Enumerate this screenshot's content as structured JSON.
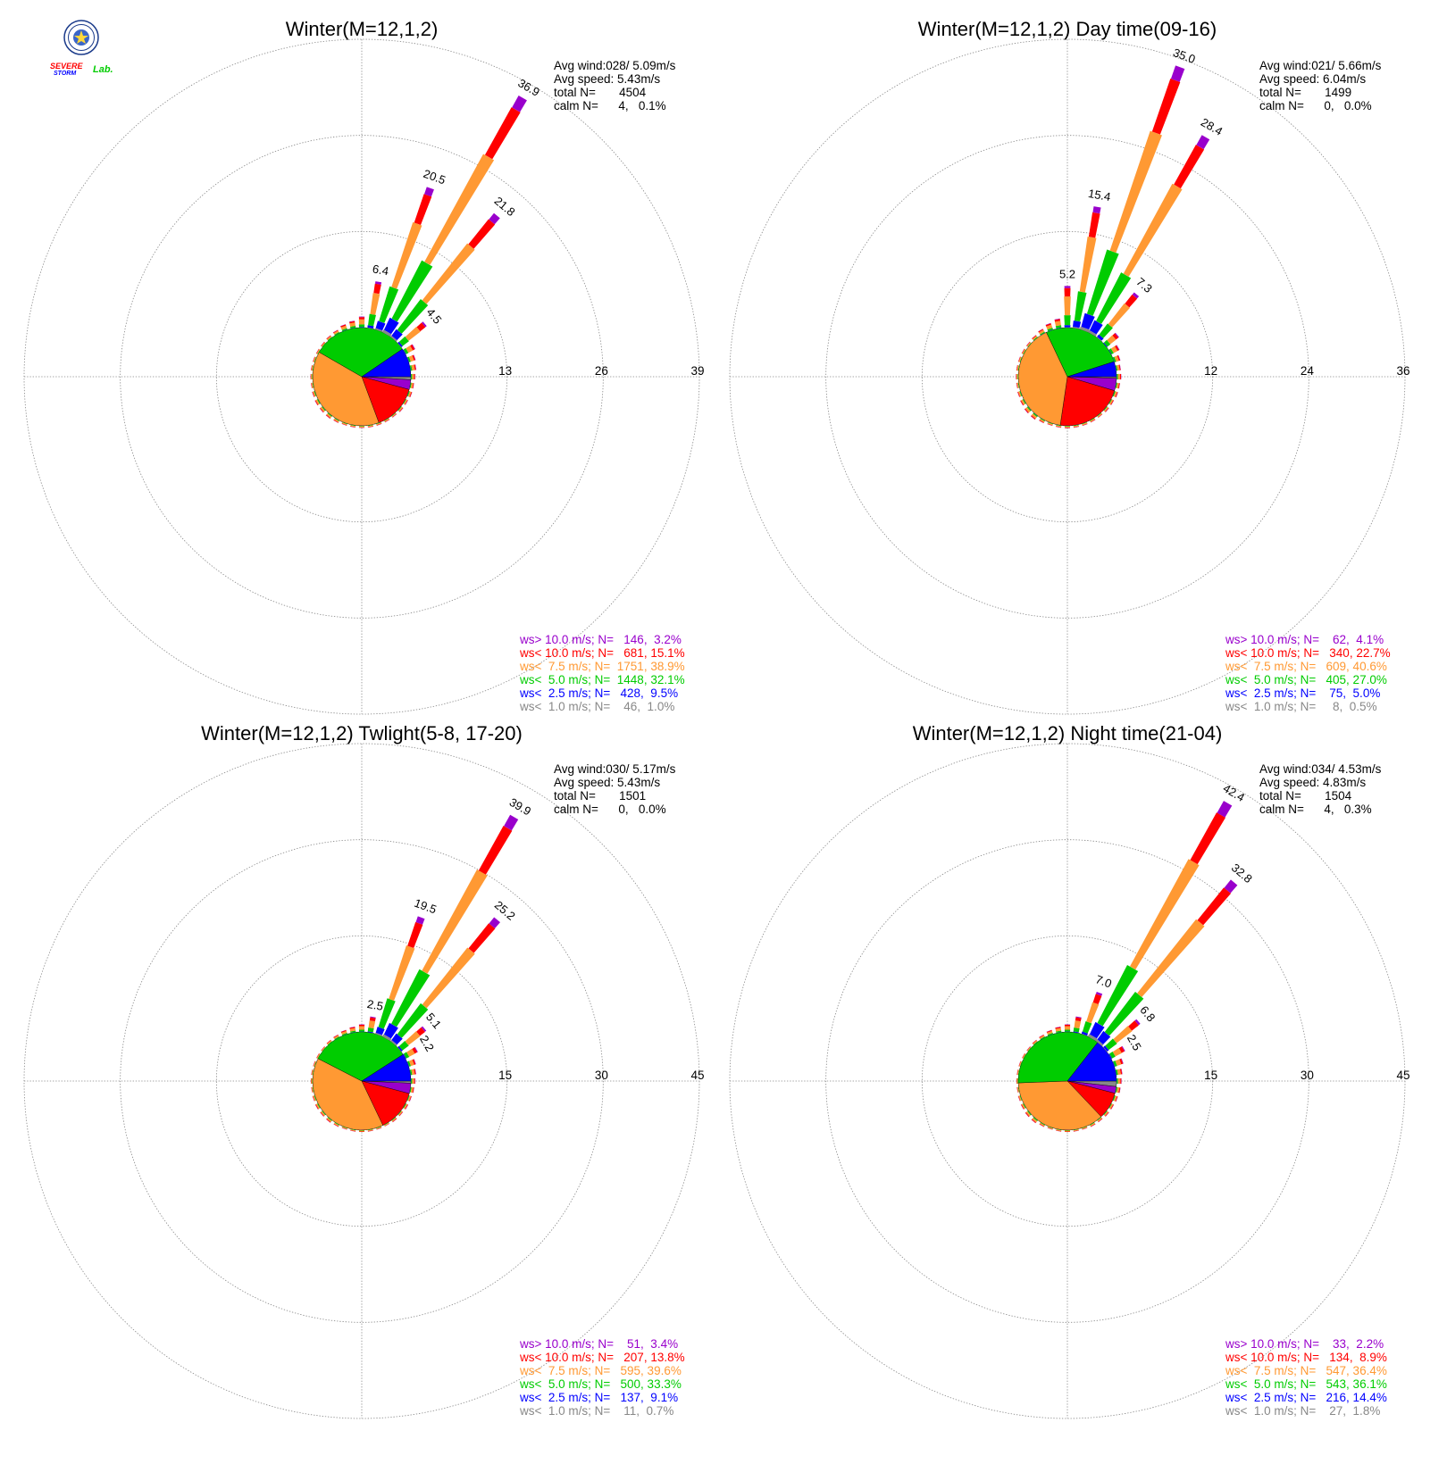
{
  "logo": {
    "word_severe": "SEVERE",
    "word_storm": "STORM",
    "word_lab": "Lab.",
    "colors": {
      "severe": "#ff0000",
      "storm": "#0000ff",
      "lab": "#00cc00",
      "seal": "#1a3a8a"
    }
  },
  "speed_classes": [
    {
      "key": "gt10",
      "color": "#9900cc"
    },
    {
      "key": "lt10",
      "color": "#ff0000"
    },
    {
      "key": "lt7_5",
      "color": "#ff9933"
    },
    {
      "key": "lt5",
      "color": "#00cc00"
    },
    {
      "key": "lt2_5",
      "color": "#0000ff"
    },
    {
      "key": "lt1",
      "color": "#888888"
    }
  ],
  "chart_data": [
    {
      "type": "windrose",
      "title": "Winter(M=12,1,2)",
      "stats": [
        "Avg wind:028/ 5.09m/s",
        "Avg speed: 5.43m/s",
        "total N=       4504",
        "calm N=      4,   0.1%"
      ],
      "ring_labels": [
        "13",
        "26",
        "39"
      ],
      "rmax": 39,
      "directions_deg": [
        0,
        10,
        20,
        30,
        40,
        50,
        60,
        70,
        80,
        90,
        100,
        110,
        120,
        130,
        140,
        150,
        160,
        170,
        180,
        190,
        200,
        210,
        220,
        230,
        240,
        250,
        260,
        270,
        280,
        290,
        300,
        310,
        320,
        330,
        340,
        350
      ],
      "bar_totals": [
        1.5,
        6.4,
        20.5,
        36.9,
        21.8,
        4.5,
        1.5,
        1.0,
        0.8,
        0.6,
        0.5,
        0.5,
        0.4,
        0.4,
        0.3,
        0.3,
        0.3,
        0.3,
        0.3,
        0.3,
        0.3,
        0.4,
        0.5,
        0.5,
        0.5,
        0.4,
        0.3,
        0.3,
        0.3,
        0.3,
        0.3,
        0.3,
        0.4,
        0.5,
        0.8,
        1.0
      ],
      "bar_labels": [
        {
          "dir": 10,
          "text": "6.4"
        },
        {
          "dir": 20,
          "text": "20.5"
        },
        {
          "dir": 30,
          "text": "36.9"
        },
        {
          "dir": 40,
          "text": "21.8"
        },
        {
          "dir": 50,
          "text": "4.5"
        }
      ],
      "pie": [
        {
          "key": "gt10",
          "pct": 3.2
        },
        {
          "key": "lt10",
          "pct": 15.1
        },
        {
          "key": "lt7_5",
          "pct": 38.9
        },
        {
          "key": "lt5",
          "pct": 32.1
        },
        {
          "key": "lt2_5",
          "pct": 9.5
        },
        {
          "key": "lt1",
          "pct": 1.0
        }
      ],
      "legend": [
        "ws> 10.0 m/s; N=   146,  3.2%",
        "ws< 10.0 m/s; N=   681, 15.1%",
        "ws<  7.5 m/s; N=  1751, 38.9%",
        "ws<  5.0 m/s; N=  1448, 32.1%",
        "ws<  2.5 m/s; N=   428,  9.5%",
        "ws<  1.0 m/s; N=    46,  1.0%"
      ]
    },
    {
      "type": "windrose",
      "title": "Winter(M=12,1,2) Day time(09-16)",
      "stats": [
        "Avg wind:021/ 5.66m/s",
        "Avg speed: 6.04m/s",
        "total N=       1499",
        "calm N=      0,   0.0%"
      ],
      "ring_labels": [
        "12",
        "24",
        "36"
      ],
      "rmax": 36,
      "directions_deg": [
        0,
        10,
        20,
        30,
        40,
        50,
        60,
        70,
        80,
        90,
        100,
        110,
        120,
        130,
        140,
        150,
        160,
        170,
        180,
        190,
        200,
        210,
        220,
        230,
        240,
        250,
        260,
        270,
        280,
        290,
        300,
        310,
        320,
        330,
        340,
        350
      ],
      "bar_totals": [
        5.2,
        15.4,
        35.0,
        28.4,
        7.3,
        2.0,
        1.2,
        0.8,
        0.6,
        0.6,
        0.5,
        0.5,
        0.4,
        0.4,
        0.3,
        0.3,
        0.3,
        0.3,
        0.3,
        0.3,
        0.3,
        0.4,
        0.6,
        0.6,
        0.5,
        0.4,
        0.3,
        0.3,
        0.3,
        0.3,
        0.3,
        0.3,
        0.4,
        0.6,
        0.9,
        1.2
      ],
      "bar_labels": [
        {
          "dir": 0,
          "text": "5.2"
        },
        {
          "dir": 10,
          "text": "15.4"
        },
        {
          "dir": 20,
          "text": "35.0"
        },
        {
          "dir": 30,
          "text": "28.4"
        },
        {
          "dir": 40,
          "text": "7.3"
        }
      ],
      "pie": [
        {
          "key": "gt10",
          "pct": 4.1
        },
        {
          "key": "lt10",
          "pct": 22.7
        },
        {
          "key": "lt7_5",
          "pct": 40.6
        },
        {
          "key": "lt5",
          "pct": 27.0
        },
        {
          "key": "lt2_5",
          "pct": 5.0
        },
        {
          "key": "lt1",
          "pct": 0.5
        }
      ],
      "legend": [
        "ws> 10.0 m/s; N=    62,  4.1%",
        "ws< 10.0 m/s; N=   340, 22.7%",
        "ws<  7.5 m/s; N=   609, 40.6%",
        "ws<  5.0 m/s; N=   405, 27.0%",
        "ws<  2.5 m/s; N=    75,  5.0%",
        "ws<  1.0 m/s; N=     8,  0.5%"
      ]
    },
    {
      "type": "windrose",
      "title": "Winter(M=12,1,2) Twlight(5-8, 17-20)",
      "stats": [
        "Avg wind:030/ 5.17m/s",
        "Avg speed: 5.43m/s",
        "total N=       1501",
        "calm N=      0,   0.0%"
      ],
      "ring_labels": [
        "15",
        "30",
        "45"
      ],
      "rmax": 45,
      "directions_deg": [
        0,
        10,
        20,
        30,
        40,
        50,
        60,
        70,
        80,
        90,
        100,
        110,
        120,
        130,
        140,
        150,
        160,
        170,
        180,
        190,
        200,
        210,
        220,
        230,
        240,
        250,
        260,
        270,
        280,
        290,
        300,
        310,
        320,
        330,
        340,
        350
      ],
      "bar_totals": [
        1.2,
        2.5,
        19.5,
        39.9,
        25.2,
        5.1,
        2.2,
        1.2,
        0.9,
        0.7,
        0.6,
        0.5,
        0.5,
        0.4,
        0.4,
        0.3,
        0.3,
        0.3,
        0.3,
        0.3,
        0.3,
        0.4,
        0.5,
        0.5,
        0.5,
        0.4,
        0.3,
        0.3,
        0.3,
        0.3,
        0.3,
        0.3,
        0.4,
        0.5,
        0.7,
        0.9
      ],
      "bar_labels": [
        {
          "dir": 10,
          "text": "2.5"
        },
        {
          "dir": 20,
          "text": "19.5"
        },
        {
          "dir": 30,
          "text": "39.9"
        },
        {
          "dir": 40,
          "text": "25.2"
        },
        {
          "dir": 50,
          "text": "5.1"
        },
        {
          "dir": 60,
          "text": "2.2"
        }
      ],
      "pie": [
        {
          "key": "gt10",
          "pct": 3.4
        },
        {
          "key": "lt10",
          "pct": 13.8
        },
        {
          "key": "lt7_5",
          "pct": 39.6
        },
        {
          "key": "lt5",
          "pct": 33.3
        },
        {
          "key": "lt2_5",
          "pct": 9.1
        },
        {
          "key": "lt1",
          "pct": 0.7
        }
      ],
      "legend": [
        "ws> 10.0 m/s; N=    51,  3.4%",
        "ws< 10.0 m/s; N=   207, 13.8%",
        "ws<  7.5 m/s; N=   595, 39.6%",
        "ws<  5.0 m/s; N=   500, 33.3%",
        "ws<  2.5 m/s; N=   137,  9.1%",
        "ws<  1.0 m/s; N=    11,  0.7%"
      ]
    },
    {
      "type": "windrose",
      "title": "Winter(M=12,1,2) Night time(21-04)",
      "stats": [
        "Avg wind:034/ 4.53m/s",
        "Avg speed: 4.83m/s",
        "total N=       1504",
        "calm N=      4,   0.3%"
      ],
      "ring_labels": [
        "15",
        "30",
        "45"
      ],
      "rmax": 45,
      "directions_deg": [
        0,
        10,
        20,
        30,
        40,
        50,
        60,
        70,
        80,
        90,
        100,
        110,
        120,
        130,
        140,
        150,
        160,
        170,
        180,
        190,
        200,
        210,
        220,
        230,
        240,
        250,
        260,
        270,
        280,
        290,
        300,
        310,
        320,
        330,
        340,
        350
      ],
      "bar_totals": [
        1.2,
        2.5,
        7.0,
        42.4,
        32.8,
        6.8,
        2.5,
        1.5,
        1.0,
        0.8,
        0.7,
        0.6,
        0.5,
        0.5,
        0.4,
        0.4,
        0.3,
        0.3,
        0.3,
        0.3,
        0.3,
        0.4,
        0.6,
        0.6,
        0.5,
        0.4,
        0.3,
        0.3,
        0.3,
        0.3,
        0.3,
        0.3,
        0.4,
        0.5,
        0.7,
        0.9
      ],
      "bar_labels": [
        {
          "dir": 20,
          "text": "7.0"
        },
        {
          "dir": 30,
          "text": "42.4"
        },
        {
          "dir": 40,
          "text": "32.8"
        },
        {
          "dir": 50,
          "text": "6.8"
        },
        {
          "dir": 60,
          "text": "2.5"
        }
      ],
      "pie": [
        {
          "key": "gt10",
          "pct": 2.2
        },
        {
          "key": "lt10",
          "pct": 8.9
        },
        {
          "key": "lt7_5",
          "pct": 36.4
        },
        {
          "key": "lt5",
          "pct": 36.1
        },
        {
          "key": "lt2_5",
          "pct": 14.4
        },
        {
          "key": "lt1",
          "pct": 1.8
        }
      ],
      "legend": [
        "ws> 10.0 m/s; N=    33,  2.2%",
        "ws< 10.0 m/s; N=   134,  8.9%",
        "ws<  7.5 m/s; N=   547, 36.4%",
        "ws<  5.0 m/s; N=   543, 36.1%",
        "ws<  2.5 m/s; N=   216, 14.4%",
        "ws<  1.0 m/s; N=    27,  1.8%"
      ]
    }
  ]
}
